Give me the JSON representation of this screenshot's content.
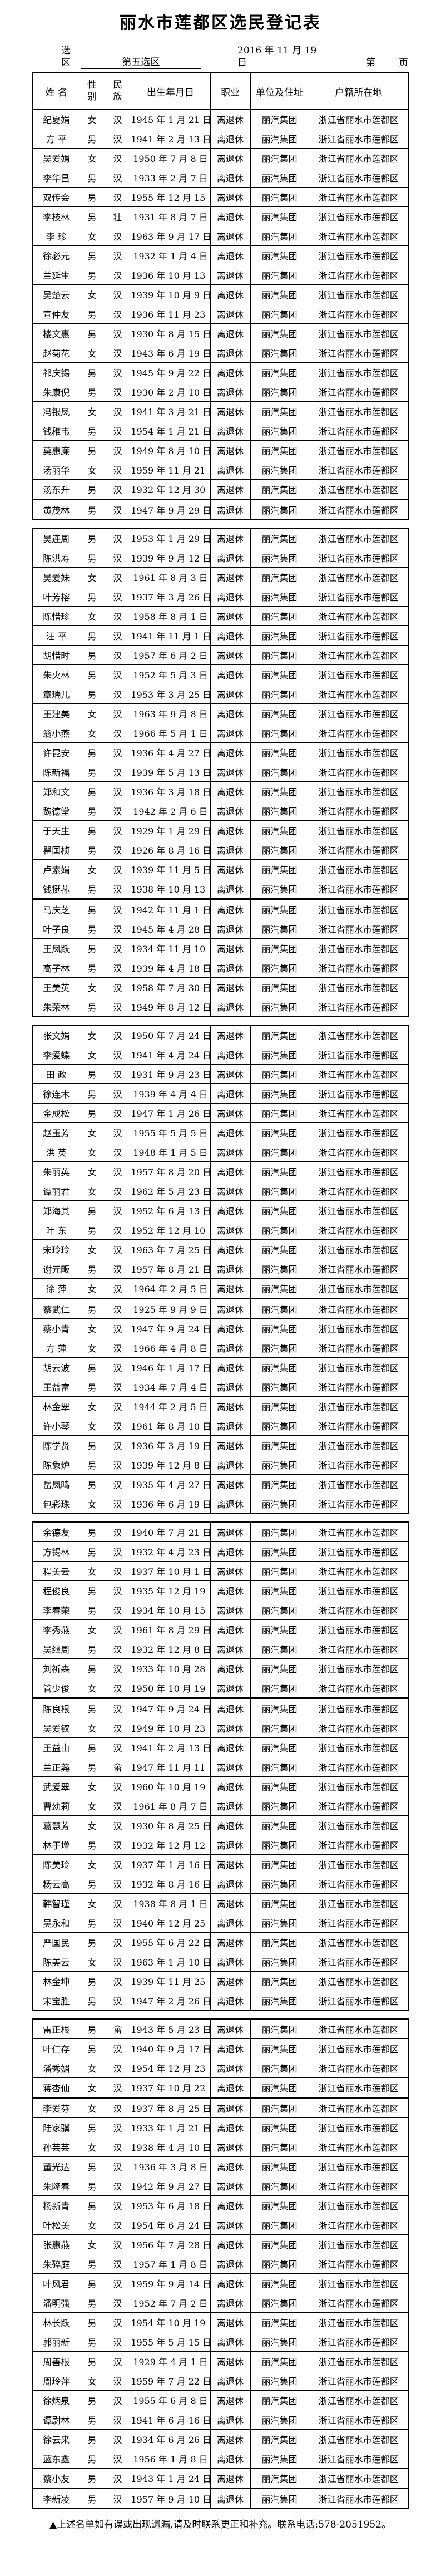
{
  "title": "丽水市莲都区选民登记表",
  "meta": {
    "district_label": "选区",
    "district_value": "第五选区",
    "date": "2016 年 11 月  19 日",
    "page_label": "第",
    "page_unit": "页"
  },
  "table": {
    "columns": [
      "姓  名",
      "性别",
      "民族",
      "出生年月日",
      "职业",
      "单位及住址",
      "户籍所在地"
    ]
  },
  "common": {
    "occupation": "离退休",
    "unit": "丽汽集团",
    "residence": "浙江省丽水市莲都区"
  },
  "pages": [
    21,
    25,
    25,
    25,
    25
  ],
  "thick_after": [
    20,
    40,
    60,
    80,
    100,
    120
  ],
  "footer": "▲上述名单如有误或出现遗漏,请及时联系更正和补充。联系电话:578-2051952。",
  "voters": [
    {
      "name": "纪夏娟",
      "gender": "女",
      "ethnic": "汉",
      "dob": "1945 年 1 月 21 日"
    },
    {
      "name": "方  平",
      "gender": "男",
      "ethnic": "汉",
      "dob": "1941 年 2 月 13 日"
    },
    {
      "name": "吴爱娟",
      "gender": "女",
      "ethnic": "汉",
      "dob": "1950 年 7 月 8 日"
    },
    {
      "name": "李华昌",
      "gender": "男",
      "ethnic": "汉",
      "dob": "1933 年 2 月 7 日"
    },
    {
      "name": "双传会",
      "gender": "男",
      "ethnic": "汉",
      "dob": "1955 年 12 月 15 日"
    },
    {
      "name": "李枝林",
      "gender": "男",
      "ethnic": "壮",
      "dob": "1931 年 8 月 7 日"
    },
    {
      "name": "李  珍",
      "gender": "女",
      "ethnic": "汉",
      "dob": "1963 年 9 月 17 日"
    },
    {
      "name": "徐必元",
      "gender": "男",
      "ethnic": "汉",
      "dob": "1932 年 1 月 4 日"
    },
    {
      "name": "兰延生",
      "gender": "男",
      "ethnic": "汉",
      "dob": "1936 年 10 月 13 日"
    },
    {
      "name": "吴楚云",
      "gender": "女",
      "ethnic": "汉",
      "dob": "1939 年 10 月 9 日"
    },
    {
      "name": "宣仲友",
      "gender": "男",
      "ethnic": "汉",
      "dob": "1936 年 11 月 23 日"
    },
    {
      "name": "楼文惠",
      "gender": "男",
      "ethnic": "汉",
      "dob": "1930 年 8 月 15 日"
    },
    {
      "name": "赵菊花",
      "gender": "女",
      "ethnic": "汉",
      "dob": "1943 年 6 月 19 日"
    },
    {
      "name": "祁庆锡",
      "gender": "男",
      "ethnic": "汉",
      "dob": "1945 年 9 月 22 日"
    },
    {
      "name": "朱康倪",
      "gender": "男",
      "ethnic": "汉",
      "dob": "1930 年 2 月 10 日"
    },
    {
      "name": "冯银凤",
      "gender": "女",
      "ethnic": "汉",
      "dob": "1941 年 3 月 21 日"
    },
    {
      "name": "钱稚韦",
      "gender": "男",
      "ethnic": "汉",
      "dob": "1954 年 1 月 21 日"
    },
    {
      "name": "莫惠廉",
      "gender": "男",
      "ethnic": "汉",
      "dob": "1949 年 8 月 10 日"
    },
    {
      "name": "汤丽华",
      "gender": "女",
      "ethnic": "汉",
      "dob": "1959 年 11 月 21 日"
    },
    {
      "name": "汤东升",
      "gender": "男",
      "ethnic": "汉",
      "dob": "1932 年 12 月 30 日"
    },
    {
      "name": "黄茂林",
      "gender": "男",
      "ethnic": "汉",
      "dob": "1947 年 9 月 29 日"
    },
    {
      "name": "吴连周",
      "gender": "男",
      "ethnic": "汉",
      "dob": "1953 年 1 月 29 日"
    },
    {
      "name": "陈洪寿",
      "gender": "男",
      "ethnic": "汉",
      "dob": "1939 年 9 月 12 日"
    },
    {
      "name": "吴爱妹",
      "gender": "女",
      "ethnic": "汉",
      "dob": "1961 年 8 月 3 日"
    },
    {
      "name": "叶芳榕",
      "gender": "男",
      "ethnic": "汉",
      "dob": "1937 年 3 月 26 日"
    },
    {
      "name": "陈惜珍",
      "gender": "女",
      "ethnic": "汉",
      "dob": "1958 年 8 月 1 日"
    },
    {
      "name": "汪  平",
      "gender": "男",
      "ethnic": "汉",
      "dob": "1941 年 11 月 1 日"
    },
    {
      "name": "胡惜时",
      "gender": "男",
      "ethnic": "汉",
      "dob": "1957 年 6 月 2 日"
    },
    {
      "name": "朱火林",
      "gender": "男",
      "ethnic": "汉",
      "dob": "1952 年 5 月 3 日"
    },
    {
      "name": "章瑞儿",
      "gender": "男",
      "ethnic": "汉",
      "dob": "1953 年 3 月 25 日"
    },
    {
      "name": "王建美",
      "gender": "女",
      "ethnic": "汉",
      "dob": "1963 年 9 月 8 日"
    },
    {
      "name": "翁小燕",
      "gender": "女",
      "ethnic": "汉",
      "dob": "1966 年 5 月 1 日"
    },
    {
      "name": "许昆安",
      "gender": "男",
      "ethnic": "汉",
      "dob": "1936 年 4 月 27 日"
    },
    {
      "name": "陈新福",
      "gender": "男",
      "ethnic": "汉",
      "dob": "1939 年 5 月 13 日"
    },
    {
      "name": "郑和文",
      "gender": "男",
      "ethnic": "汉",
      "dob": "1936 年 3 月 18 日"
    },
    {
      "name": "魏德堂",
      "gender": "男",
      "ethnic": "汉",
      "dob": "1942 年 2 月 6 日"
    },
    {
      "name": "于天生",
      "gender": "男",
      "ethnic": "汉",
      "dob": "1929 年 1 月 29 日"
    },
    {
      "name": "瞿国桢",
      "gender": "男",
      "ethnic": "汉",
      "dob": "1926 年 8 月 16 日"
    },
    {
      "name": "卢素娟",
      "gender": "女",
      "ethnic": "汉",
      "dob": "1939 年 11 月 5 日"
    },
    {
      "name": "钱挺荪",
      "gender": "男",
      "ethnic": "汉",
      "dob": "1938 年 10 月 13 日"
    },
    {
      "name": "马庆芝",
      "gender": "男",
      "ethnic": "汉",
      "dob": "1942 年 11 月 1 日"
    },
    {
      "name": "叶子良",
      "gender": "男",
      "ethnic": "汉",
      "dob": "1945 年 4 月 28 日"
    },
    {
      "name": "王凤跃",
      "gender": "男",
      "ethnic": "汉",
      "dob": "1934 年 11 月 10 日"
    },
    {
      "name": "高子林",
      "gender": "男",
      "ethnic": "汉",
      "dob": "1939 年 4 月 18 日"
    },
    {
      "name": "王美英",
      "gender": "女",
      "ethnic": "汉",
      "dob": "1958 年 7 月 30 日"
    },
    {
      "name": "朱荣林",
      "gender": "男",
      "ethnic": "汉",
      "dob": "1949 年 8 月 12 日"
    },
    {
      "name": "张文娟",
      "gender": "女",
      "ethnic": "汉",
      "dob": "1950 年 7 月 24 日"
    },
    {
      "name": "李爱蝶",
      "gender": "女",
      "ethnic": "汉",
      "dob": "1941 年 4 月 24 日"
    },
    {
      "name": "田  政",
      "gender": "男",
      "ethnic": "汉",
      "dob": "1931 年 9 月 23 日"
    },
    {
      "name": "徐连木",
      "gender": "男",
      "ethnic": "汉",
      "dob": "1939 年 4 月 4 日"
    },
    {
      "name": "金成松",
      "gender": "男",
      "ethnic": "汉",
      "dob": "1947 年 1 月 26 日"
    },
    {
      "name": "赵玉芳",
      "gender": "女",
      "ethnic": "汉",
      "dob": "1955 年 5 月 5 日"
    },
    {
      "name": "洪  英",
      "gender": "女",
      "ethnic": "汉",
      "dob": "1948 年 1 月 5 日"
    },
    {
      "name": "朱丽英",
      "gender": "女",
      "ethnic": "汉",
      "dob": "1957 年 8 月 20 日"
    },
    {
      "name": "谭丽君",
      "gender": "女",
      "ethnic": "汉",
      "dob": "1962 年 5 月 23 日"
    },
    {
      "name": "郑海其",
      "gender": "男",
      "ethnic": "汉",
      "dob": "1952 年 6 月 13 日"
    },
    {
      "name": "叶  东",
      "gender": "男",
      "ethnic": "汉",
      "dob": "1952 年 12 月 10 日"
    },
    {
      "name": "宋玲玲",
      "gender": "女",
      "ethnic": "汉",
      "dob": "1963 年 7 月 25 日"
    },
    {
      "name": "谢元畈",
      "gender": "男",
      "ethnic": "汉",
      "dob": "1957 年 8 月 21 日"
    },
    {
      "name": "徐  萍",
      "gender": "女",
      "ethnic": "汉",
      "dob": "1964 年 2 月 5 日"
    },
    {
      "name": "蔡武仁",
      "gender": "男",
      "ethnic": "汉",
      "dob": "1925 年 9 月 9 日"
    },
    {
      "name": "蔡小青",
      "gender": "女",
      "ethnic": "汉",
      "dob": "1947 年 9 月 24 日"
    },
    {
      "name": "方  萍",
      "gender": "女",
      "ethnic": "汉",
      "dob": "1966 年 4 月 8 日"
    },
    {
      "name": "胡云波",
      "gender": "男",
      "ethnic": "汉",
      "dob": "1946 年 1 月 17 日"
    },
    {
      "name": "王益富",
      "gender": "男",
      "ethnic": "汉",
      "dob": "1934 年 7 月 4 日"
    },
    {
      "name": "林金翠",
      "gender": "女",
      "ethnic": "汉",
      "dob": "1944 年 2 月 5 日"
    },
    {
      "name": "许小琴",
      "gender": "女",
      "ethnic": "汉",
      "dob": "1961 年 8 月 10 日"
    },
    {
      "name": "陈学贤",
      "gender": "男",
      "ethnic": "汉",
      "dob": "1936 年 3 月 19 日"
    },
    {
      "name": "陈象炉",
      "gender": "男",
      "ethnic": "汉",
      "dob": "1939 年 12 月 8 日"
    },
    {
      "name": "岳凤鸣",
      "gender": "男",
      "ethnic": "汉",
      "dob": "1935 年 4 月 27 日"
    },
    {
      "name": "包彩珠",
      "gender": "女",
      "ethnic": "汉",
      "dob": "1936 年 6 月 19 日"
    },
    {
      "name": "余德友",
      "gender": "男",
      "ethnic": "汉",
      "dob": "1940 年 7 月 21 日",
      "bold": "name-gender"
    },
    {
      "name": "方锡林",
      "gender": "男",
      "ethnic": "汉",
      "dob": "1932 年 4 月 23 日"
    },
    {
      "name": "程美云",
      "gender": "女",
      "ethnic": "汉",
      "dob": "1937 年 10 月 1 日"
    },
    {
      "name": "程俊良",
      "gender": "男",
      "ethnic": "汉",
      "dob": "1935 年 12 月 19 日"
    },
    {
      "name": "李春荣",
      "gender": "男",
      "ethnic": "汉",
      "dob": "1934 年 10 月 15 日"
    },
    {
      "name": "李秀燕",
      "gender": "女",
      "ethnic": "汉",
      "dob": "1961 年 8 月 29 日"
    },
    {
      "name": "吴继周",
      "gender": "男",
      "ethnic": "汉",
      "dob": "1932 年 12 月 8 日"
    },
    {
      "name": "刘祈森",
      "gender": "男",
      "ethnic": "汉",
      "dob": "1933 年 10 月 28 日"
    },
    {
      "name": "管少俊",
      "gender": "女",
      "ethnic": "汉",
      "dob": "1950 年 10 月 19 日"
    },
    {
      "name": "陈良根",
      "gender": "男",
      "ethnic": "汉",
      "dob": "1947 年 9 月 24 日"
    },
    {
      "name": "吴爱钗",
      "gender": "女",
      "ethnic": "汉",
      "dob": "1949 年 10 月 23 日"
    },
    {
      "name": "王益山",
      "gender": "男",
      "ethnic": "汉",
      "dob": "1941 年 2 月 13 日"
    },
    {
      "name": "兰正荛",
      "gender": "男",
      "ethnic": "畲",
      "dob": "1947 年 11 月 11 日"
    },
    {
      "name": "武爱翠",
      "gender": "女",
      "ethnic": "汉",
      "dob": "1960 年 10 月 19 日"
    },
    {
      "name": "曹幼莉",
      "gender": "女",
      "ethnic": "汉",
      "dob": "1961 年 8 月 7 日"
    },
    {
      "name": "葛慧芳",
      "gender": "女",
      "ethnic": "汉",
      "dob": "1930 年 8 月 25 日"
    },
    {
      "name": "林于增",
      "gender": "男",
      "ethnic": "汉",
      "dob": "1932 年 12 月 12 日"
    },
    {
      "name": "陈美玲",
      "gender": "女",
      "ethnic": "汉",
      "dob": "1937 年 1 月 16 日"
    },
    {
      "name": "杨云高",
      "gender": "男",
      "ethnic": "汉",
      "dob": "1932 年 8 月 16 日"
    },
    {
      "name": "韩智瑾",
      "gender": "女",
      "ethnic": "汉",
      "dob": "1938 年 8 月 1 日"
    },
    {
      "name": "吴永和",
      "gender": "男",
      "ethnic": "汉",
      "dob": "1940 年 12 月 25 日"
    },
    {
      "name": "严国民",
      "gender": "男",
      "ethnic": "汉",
      "dob": "1955 年 6 月 22 日"
    },
    {
      "name": "陈美云",
      "gender": "女",
      "ethnic": "汉",
      "dob": "1963 年 1 月 10 日"
    },
    {
      "name": "林金坤",
      "gender": "男",
      "ethnic": "汉",
      "dob": "1939 年 11 月 25 日"
    },
    {
      "name": "宋宝胜",
      "gender": "男",
      "ethnic": "汉",
      "dob": "1947 年 2 月 26 日"
    },
    {
      "name": "雷正根",
      "gender": "男",
      "ethnic": "畲",
      "dob": "1943 年 5 月 23 日"
    },
    {
      "name": "叶仁存",
      "gender": "男",
      "ethnic": "汉",
      "dob": "1940 年 9 月 17 日",
      "bold": "name"
    },
    {
      "name": "潘秀媚",
      "gender": "女",
      "ethnic": "汉",
      "dob": "1954 年 12 月 23 日"
    },
    {
      "name": "蒋杏仙",
      "gender": "女",
      "ethnic": "汉",
      "dob": "1937 年 10 月 22 日"
    },
    {
      "name": "李爱芬",
      "gender": "女",
      "ethnic": "汉",
      "dob": "1937 年 8 月 25 日"
    },
    {
      "name": "陆家骥",
      "gender": "男",
      "ethnic": "汉",
      "dob": "1933 年 1 月 21 日"
    },
    {
      "name": "孙芸芸",
      "gender": "女",
      "ethnic": "汉",
      "dob": "1938 年 4 月 10 日"
    },
    {
      "name": "董光达",
      "gender": "男",
      "ethnic": "汉",
      "dob": "1936 年 3 月 8 日"
    },
    {
      "name": "朱隆春",
      "gender": "男",
      "ethnic": "汉",
      "dob": "1942 年 9 月 27 日"
    },
    {
      "name": "杨新青",
      "gender": "男",
      "ethnic": "汉",
      "dob": "1953 年 6 月 18 日"
    },
    {
      "name": "叶松美",
      "gender": "女",
      "ethnic": "汉",
      "dob": "1954 年 6 月 24 日"
    },
    {
      "name": "张惠燕",
      "gender": "女",
      "ethnic": "汉",
      "dob": "1956 年 7 月 28 日"
    },
    {
      "name": "朱碎庭",
      "gender": "男",
      "ethnic": "汉",
      "dob": "1957 年 1 月 8 日"
    },
    {
      "name": "叶风君",
      "gender": "男",
      "ethnic": "汉",
      "dob": "1959 年 9 月 14 日"
    },
    {
      "name": "潘明强",
      "gender": "男",
      "ethnic": "汉",
      "dob": "1952 年 7 月 2 日"
    },
    {
      "name": "林长跃",
      "gender": "男",
      "ethnic": "汉",
      "dob": "1954 年 10 月 19 日"
    },
    {
      "name": "郭丽新",
      "gender": "男",
      "ethnic": "汉",
      "dob": "1955 年 5 月 15 日"
    },
    {
      "name": "周善根",
      "gender": "男",
      "ethnic": "汉",
      "dob": "1929 年 4 月 1 日"
    },
    {
      "name": "周玲萍",
      "gender": "女",
      "ethnic": "汉",
      "dob": "1959 年 7 月 22 日"
    },
    {
      "name": "徐炳泉",
      "gender": "男",
      "ethnic": "汉",
      "dob": "1955 年 6 月 8 日"
    },
    {
      "name": "谭尉林",
      "gender": "男",
      "ethnic": "汉",
      "dob": "1941 年 6 月 16 日"
    },
    {
      "name": "徐云来",
      "gender": "男",
      "ethnic": "汉",
      "dob": "1934 年 6 月 26 日"
    },
    {
      "name": "蓝东鑫",
      "gender": "男",
      "ethnic": "汉",
      "dob": "1956 年 1 月 8 日"
    },
    {
      "name": "蔡小友",
      "gender": "男",
      "ethnic": "汉",
      "dob": "1943 年 1 月 24 日"
    },
    {
      "name": "李新凌",
      "gender": "男",
      "ethnic": "汉",
      "dob": "1957 年 9 月 10 日"
    }
  ]
}
